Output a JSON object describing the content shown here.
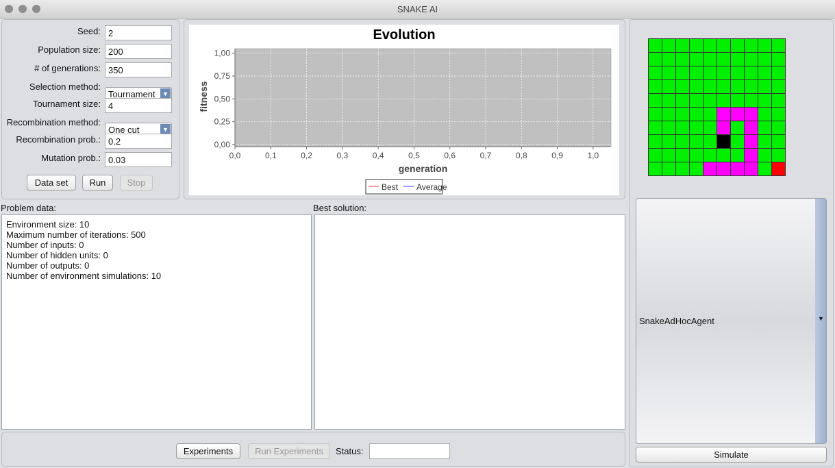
{
  "window": {
    "title": "SNAKE AI"
  },
  "form": {
    "fields": [
      {
        "label": "Seed:",
        "value": "2"
      },
      {
        "label": "Population size:",
        "value": "200"
      },
      {
        "label": "# of generations:",
        "value": "350"
      },
      {
        "label": "Selection method:",
        "value": "Tournament"
      },
      {
        "label": "Tournament size:",
        "value": "4"
      },
      {
        "label": "Recombination method:",
        "value": "One cut"
      },
      {
        "label": "Recombination prob.:",
        "value": "0.2"
      },
      {
        "label": "Mutation prob.:",
        "value": "0.03"
      }
    ],
    "buttons": [
      "Data set",
      "Run",
      "Stop"
    ]
  },
  "chart": {
    "type": "line",
    "title": "Evolution",
    "xlabel": "generation",
    "ylabel": "fitness",
    "xlim": [
      0,
      1.05
    ],
    "ylim": [
      0,
      1.05
    ],
    "grid": true,
    "xticks": [
      {
        "value": 0,
        "label": "0,0"
      },
      {
        "value": 0.1,
        "label": "0,1"
      },
      {
        "value": 0.2,
        "label": "0,2"
      },
      {
        "value": 0.3,
        "label": "0,3"
      },
      {
        "value": 0.4,
        "label": "0,4"
      },
      {
        "value": 0.5,
        "label": "0,5"
      },
      {
        "value": 0.6,
        "label": "0,6"
      },
      {
        "value": 0.7,
        "label": "0,7"
      },
      {
        "value": 0.8,
        "label": "0,8"
      },
      {
        "value": 0.9,
        "label": "0,9"
      },
      {
        "value": 1,
        "label": "1,0"
      }
    ],
    "yticks": [
      {
        "value": 0,
        "label": "0,00"
      },
      {
        "value": 0.25,
        "label": "0,25"
      },
      {
        "value": 0.5,
        "label": "0,50"
      },
      {
        "value": 0.75,
        "label": "0,75"
      },
      {
        "value": 1,
        "label": "1,00"
      }
    ],
    "legend": "bottom",
    "x": [],
    "series": [
      {
        "name": "Best",
        "color": "#e03a3a",
        "values": []
      },
      {
        "name": "Average",
        "color": "#3a3ae0",
        "values": []
      }
    ]
  },
  "problem_data": {
    "label": "Problem data:",
    "lines": [
      "Environment size: 10",
      "Maximum number of iterations: 500",
      "Number of inputs: 0",
      "Number of hidden units: 0",
      "Number of outputs: 0",
      "Number of environment simulations: 10"
    ]
  },
  "best_solution": {
    "label": "Best solution:"
  },
  "agent": {
    "selected": "SnakeAdHocAgent",
    "button": "Simulate"
  },
  "footer": {
    "buttons": [
      "Experiments",
      "Run Experiments"
    ],
    "status_label": "Status:"
  }
}
